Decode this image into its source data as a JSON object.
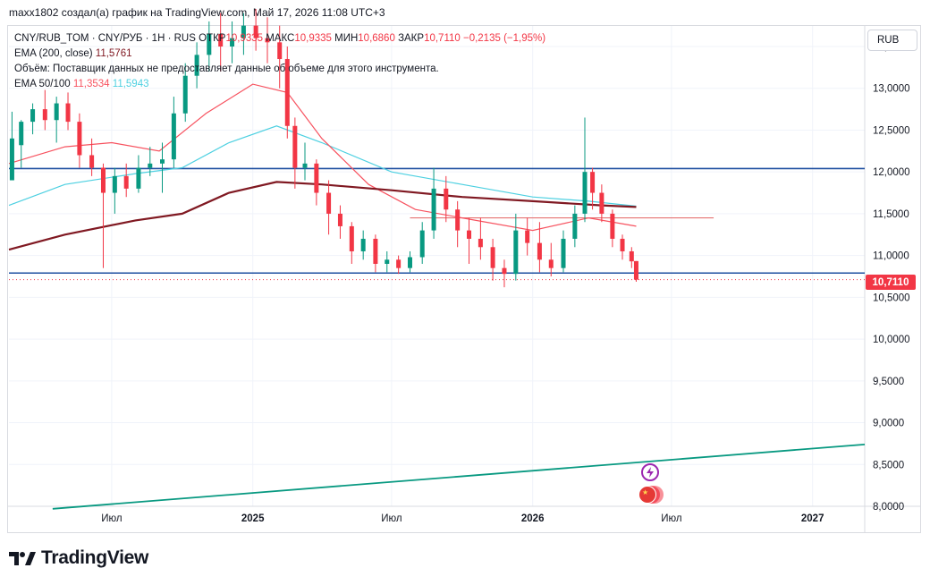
{
  "header": {
    "attribution": "maxx1802 создал(а) график на TradingView.com, Май 17, 2026 11:08 UTC+3"
  },
  "legend": {
    "symbol": "CNY/RUB_TOM · CNY/РУБ · 1H · RUS",
    "open_label": "ОТКР",
    "open_value": "10,9335",
    "high_label": "МАКС",
    "high_value": "10,9335",
    "low_label": "МИН",
    "low_value": "10,6860",
    "close_label": "ЗАКР",
    "close_value": "10,7110",
    "change": "−0,2135 (−1,95%)",
    "ema_label": "EMA (200, close)",
    "ema_value": "11,5761",
    "volume_note": "Объём: Поставщик данных не предоставляет данные об объеме для этого инструмента.",
    "ema_pair_label": "EMA 50/100",
    "ema50_value": "11,3534",
    "ema100_value": "11,5943"
  },
  "currency_button": "RUB",
  "last_price_tag": "10,7110",
  "brand": "TradingView",
  "colors": {
    "up": "#089981",
    "down": "#f23645",
    "ema200": "#801922",
    "ema50": "#f7525f",
    "ema100": "#4dd0e1",
    "hline": "#1e4fa0",
    "trend": "#089981"
  },
  "chart_data": {
    "type": "candlestick",
    "y_axis_ticks": [
      "13,5000",
      "13,0000",
      "12,5000",
      "12,0000",
      "11,5000",
      "11,0000",
      "10,5000",
      "10,0000",
      "9,5000",
      "9,0000",
      "8,5000",
      "8,0000"
    ],
    "ylim": [
      8.0,
      13.5
    ],
    "x_axis_ticks": [
      "Июл",
      "2025",
      "Июл",
      "2026",
      "Июл",
      "2027"
    ],
    "x_tick_dates": [
      "2024-07-01",
      "2025-01-01",
      "2025-07-01",
      "2026-01-01",
      "2026-07-01",
      "2027-01-01"
    ],
    "xlim": [
      "2024-02-18",
      "2027-03-10"
    ],
    "horizontal_lines": [
      12.04,
      10.79
    ],
    "short_line": {
      "y": 11.45,
      "from": "2025-07-25",
      "to": "2026-08-25"
    },
    "trendline": [
      {
        "x": "2024-04-15",
        "y": 7.97
      },
      {
        "x": "2027-03-10",
        "y": 8.74
      }
    ],
    "last_price": 10.711,
    "candles": [
      {
        "x": "2024-02-22",
        "o": 11.9,
        "h": 12.72,
        "l": 11.9,
        "c": 12.4
      },
      {
        "x": "2024-03-05",
        "o": 12.32,
        "h": 12.62,
        "l": 12.05,
        "c": 12.6
      },
      {
        "x": "2024-03-20",
        "o": 12.6,
        "h": 12.82,
        "l": 12.45,
        "c": 12.75
      },
      {
        "x": "2024-04-05",
        "o": 12.75,
        "h": 12.98,
        "l": 12.5,
        "c": 12.62
      },
      {
        "x": "2024-04-20",
        "o": 12.62,
        "h": 12.9,
        "l": 12.35,
        "c": 12.82
      },
      {
        "x": "2024-05-05",
        "o": 12.82,
        "h": 12.95,
        "l": 12.5,
        "c": 12.6
      },
      {
        "x": "2024-05-20",
        "o": 12.6,
        "h": 12.7,
        "l": 12.05,
        "c": 12.2
      },
      {
        "x": "2024-06-05",
        "o": 12.2,
        "h": 12.4,
        "l": 11.95,
        "c": 12.05
      },
      {
        "x": "2024-06-20",
        "o": 12.05,
        "h": 12.1,
        "l": 10.85,
        "c": 11.75
      },
      {
        "x": "2024-07-05",
        "o": 11.75,
        "h": 12.05,
        "l": 11.5,
        "c": 11.95
      },
      {
        "x": "2024-07-20",
        "o": 11.95,
        "h": 12.1,
        "l": 11.7,
        "c": 11.8
      },
      {
        "x": "2024-08-05",
        "o": 11.8,
        "h": 12.2,
        "l": 11.75,
        "c": 12.05
      },
      {
        "x": "2024-08-20",
        "o": 12.05,
        "h": 12.3,
        "l": 11.95,
        "c": 12.1
      },
      {
        "x": "2024-09-05",
        "o": 12.1,
        "h": 12.35,
        "l": 11.75,
        "c": 12.15
      },
      {
        "x": "2024-09-20",
        "o": 12.15,
        "h": 12.9,
        "l": 12.05,
        "c": 12.7
      },
      {
        "x": "2024-10-05",
        "o": 12.7,
        "h": 13.3,
        "l": 12.6,
        "c": 13.15
      },
      {
        "x": "2024-10-20",
        "o": 13.15,
        "h": 13.55,
        "l": 13.0,
        "c": 13.4
      },
      {
        "x": "2024-11-05",
        "o": 13.4,
        "h": 13.8,
        "l": 13.2,
        "c": 13.65
      },
      {
        "x": "2024-11-20",
        "o": 13.65,
        "h": 13.9,
        "l": 13.2,
        "c": 13.5
      },
      {
        "x": "2024-12-05",
        "o": 13.5,
        "h": 13.8,
        "l": 13.3,
        "c": 13.6
      },
      {
        "x": "2024-12-20",
        "o": 13.6,
        "h": 13.9,
        "l": 13.4,
        "c": 13.75
      },
      {
        "x": "2025-01-05",
        "o": 13.75,
        "h": 13.95,
        "l": 13.45,
        "c": 13.6
      },
      {
        "x": "2025-01-20",
        "o": 13.6,
        "h": 13.85,
        "l": 13.3,
        "c": 13.55
      },
      {
        "x": "2025-02-05",
        "o": 13.55,
        "h": 13.75,
        "l": 13.0,
        "c": 13.35
      },
      {
        "x": "2025-02-15",
        "o": 13.35,
        "h": 13.5,
        "l": 12.4,
        "c": 12.55
      },
      {
        "x": "2025-02-25",
        "o": 12.55,
        "h": 12.65,
        "l": 11.8,
        "c": 12.05
      },
      {
        "x": "2025-03-10",
        "o": 12.05,
        "h": 12.35,
        "l": 11.9,
        "c": 12.1
      },
      {
        "x": "2025-03-25",
        "o": 12.1,
        "h": 12.15,
        "l": 11.6,
        "c": 11.75
      },
      {
        "x": "2025-04-10",
        "o": 11.75,
        "h": 11.9,
        "l": 11.25,
        "c": 11.5
      },
      {
        "x": "2025-04-25",
        "o": 11.5,
        "h": 11.6,
        "l": 11.2,
        "c": 11.35
      },
      {
        "x": "2025-05-10",
        "o": 11.35,
        "h": 11.4,
        "l": 10.9,
        "c": 11.05
      },
      {
        "x": "2025-05-25",
        "o": 11.05,
        "h": 11.3,
        "l": 10.95,
        "c": 11.2
      },
      {
        "x": "2025-06-10",
        "o": 11.2,
        "h": 11.25,
        "l": 10.8,
        "c": 10.9
      },
      {
        "x": "2025-06-25",
        "o": 10.9,
        "h": 11.05,
        "l": 10.8,
        "c": 10.95
      },
      {
        "x": "2025-07-10",
        "o": 10.95,
        "h": 11.0,
        "l": 10.78,
        "c": 10.85
      },
      {
        "x": "2025-07-25",
        "o": 10.85,
        "h": 11.05,
        "l": 10.8,
        "c": 10.98
      },
      {
        "x": "2025-08-10",
        "o": 10.98,
        "h": 11.4,
        "l": 10.9,
        "c": 11.3
      },
      {
        "x": "2025-08-25",
        "o": 11.3,
        "h": 12.05,
        "l": 11.2,
        "c": 11.8
      },
      {
        "x": "2025-09-10",
        "o": 11.8,
        "h": 11.95,
        "l": 11.4,
        "c": 11.55
      },
      {
        "x": "2025-09-25",
        "o": 11.55,
        "h": 11.65,
        "l": 11.1,
        "c": 11.3
      },
      {
        "x": "2025-10-10",
        "o": 11.3,
        "h": 11.45,
        "l": 10.9,
        "c": 11.2
      },
      {
        "x": "2025-10-25",
        "o": 11.2,
        "h": 11.45,
        "l": 10.95,
        "c": 11.1
      },
      {
        "x": "2025-11-10",
        "o": 11.1,
        "h": 11.2,
        "l": 10.7,
        "c": 10.85
      },
      {
        "x": "2025-11-25",
        "o": 10.85,
        "h": 10.95,
        "l": 10.62,
        "c": 10.78
      },
      {
        "x": "2025-12-10",
        "o": 10.78,
        "h": 11.5,
        "l": 10.7,
        "c": 11.3
      },
      {
        "x": "2025-12-25",
        "o": 11.3,
        "h": 11.45,
        "l": 11.0,
        "c": 11.15
      },
      {
        "x": "2026-01-10",
        "o": 11.15,
        "h": 11.4,
        "l": 10.8,
        "c": 10.95
      },
      {
        "x": "2026-01-25",
        "o": 10.95,
        "h": 11.15,
        "l": 10.75,
        "c": 10.85
      },
      {
        "x": "2026-02-10",
        "o": 10.85,
        "h": 11.3,
        "l": 10.8,
        "c": 11.2
      },
      {
        "x": "2026-02-25",
        "o": 11.2,
        "h": 11.6,
        "l": 11.1,
        "c": 11.5
      },
      {
        "x": "2026-03-10",
        "o": 11.5,
        "h": 12.65,
        "l": 11.4,
        "c": 12.0
      },
      {
        "x": "2026-03-20",
        "o": 12.0,
        "h": 12.05,
        "l": 11.55,
        "c": 11.75
      },
      {
        "x": "2026-04-01",
        "o": 11.75,
        "h": 11.85,
        "l": 11.4,
        "c": 11.5
      },
      {
        "x": "2026-04-15",
        "o": 11.5,
        "h": 11.55,
        "l": 11.1,
        "c": 11.2
      },
      {
        "x": "2026-04-28",
        "o": 11.2,
        "h": 11.25,
        "l": 10.95,
        "c": 11.05
      },
      {
        "x": "2026-05-10",
        "o": 11.05,
        "h": 11.1,
        "l": 10.85,
        "c": 10.93
      },
      {
        "x": "2026-05-16",
        "o": 10.9335,
        "h": 10.9335,
        "l": 10.686,
        "c": 10.711
      }
    ],
    "ema200": [
      {
        "x": "2024-02-18",
        "y": 11.07
      },
      {
        "x": "2024-05-01",
        "y": 11.25
      },
      {
        "x": "2024-08-01",
        "y": 11.42
      },
      {
        "x": "2024-10-01",
        "y": 11.5
      },
      {
        "x": "2024-12-01",
        "y": 11.75
      },
      {
        "x": "2025-02-01",
        "y": 11.88
      },
      {
        "x": "2025-04-01",
        "y": 11.85
      },
      {
        "x": "2025-07-01",
        "y": 11.78
      },
      {
        "x": "2025-10-01",
        "y": 11.7
      },
      {
        "x": "2026-01-01",
        "y": 11.65
      },
      {
        "x": "2026-04-01",
        "y": 11.6
      },
      {
        "x": "2026-05-16",
        "y": 11.58
      }
    ],
    "ema50": [
      {
        "x": "2024-02-18",
        "y": 12.1
      },
      {
        "x": "2024-05-01",
        "y": 12.3
      },
      {
        "x": "2024-07-01",
        "y": 12.35
      },
      {
        "x": "2024-09-01",
        "y": 12.25
      },
      {
        "x": "2024-11-01",
        "y": 12.7
      },
      {
        "x": "2025-01-01",
        "y": 13.05
      },
      {
        "x": "2025-02-15",
        "y": 12.95
      },
      {
        "x": "2025-04-01",
        "y": 12.4
      },
      {
        "x": "2025-06-01",
        "y": 11.85
      },
      {
        "x": "2025-08-01",
        "y": 11.55
      },
      {
        "x": "2025-10-01",
        "y": 11.45
      },
      {
        "x": "2026-01-01",
        "y": 11.3
      },
      {
        "x": "2026-03-15",
        "y": 11.45
      },
      {
        "x": "2026-05-16",
        "y": 11.35
      }
    ],
    "ema100": [
      {
        "x": "2024-02-18",
        "y": 11.6
      },
      {
        "x": "2024-05-01",
        "y": 11.85
      },
      {
        "x": "2024-08-01",
        "y": 11.98
      },
      {
        "x": "2024-10-01",
        "y": 12.05
      },
      {
        "x": "2024-12-01",
        "y": 12.35
      },
      {
        "x": "2025-02-01",
        "y": 12.55
      },
      {
        "x": "2025-04-01",
        "y": 12.35
      },
      {
        "x": "2025-07-01",
        "y": 12.0
      },
      {
        "x": "2025-10-01",
        "y": 11.85
      },
      {
        "x": "2026-01-01",
        "y": 11.7
      },
      {
        "x": "2026-03-15",
        "y": 11.65
      },
      {
        "x": "2026-05-16",
        "y": 11.59
      }
    ]
  }
}
